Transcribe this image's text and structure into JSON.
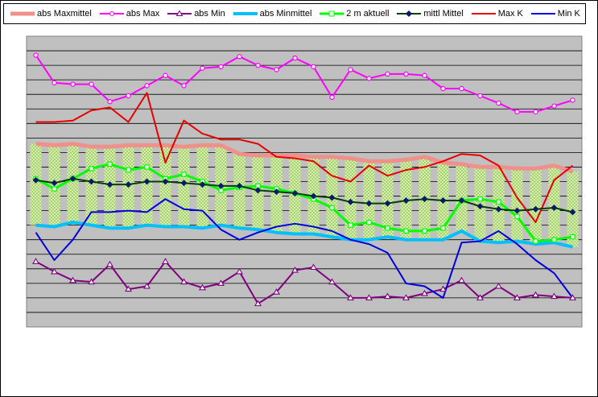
{
  "chart_data": {
    "type": "line",
    "title": "",
    "xlabel": "",
    "ylabel": "",
    "grid": true,
    "legend_position": "top",
    "x": [
      1,
      2,
      3,
      4,
      5,
      6,
      7,
      8,
      9,
      10,
      11,
      12,
      13,
      14,
      15,
      16,
      17,
      18,
      19,
      20,
      21,
      22,
      23,
      24,
      25,
      26,
      27,
      28,
      29,
      30
    ],
    "ylim": [
      0,
      20
    ],
    "band": {
      "upper": "abs Maxmittel",
      "lower": "abs Minmittel",
      "color": "#a6d46a"
    },
    "series": [
      {
        "name": "abs Maxmittel",
        "color": "#f0908a",
        "marker": "none",
        "width": 5,
        "values": [
          12.6,
          12.5,
          12.6,
          12.4,
          12.4,
          12.5,
          12.5,
          12.5,
          12.4,
          12.5,
          12.5,
          11.9,
          11.8,
          11.8,
          11.8,
          11.7,
          11.7,
          11.6,
          11.4,
          11.4,
          11.5,
          11.7,
          11.3,
          11.2,
          11.0,
          11.0,
          10.9,
          10.9,
          11.1,
          10.7
        ]
      },
      {
        "name": "abs Max",
        "color": "#ff00ff",
        "marker": "circle",
        "values": [
          18.7,
          16.8,
          16.7,
          16.7,
          15.5,
          15.9,
          16.6,
          17.3,
          16.6,
          17.8,
          17.9,
          18.6,
          18.0,
          17.7,
          18.5,
          17.9,
          15.8,
          17.7,
          17.1,
          17.4,
          17.4,
          17.3,
          16.4,
          16.4,
          15.9,
          15.4,
          14.8,
          14.8,
          15.2,
          15.6
        ]
      },
      {
        "name": "abs Min",
        "color": "#800080",
        "marker": "triangle",
        "values": [
          4.5,
          3.8,
          3.2,
          3.1,
          4.3,
          2.6,
          2.8,
          4.5,
          3.1,
          2.7,
          3.0,
          3.8,
          1.6,
          2.4,
          3.9,
          4.1,
          3.1,
          2.0,
          2.0,
          2.1,
          2.0,
          2.3,
          2.6,
          3.2,
          2.0,
          2.8,
          2.0,
          2.2,
          2.1,
          2.0
        ]
      },
      {
        "name": "abs Minmittel",
        "color": "#00c0ff",
        "marker": "none",
        "width": 4,
        "values": [
          7.0,
          6.9,
          7.2,
          7.0,
          6.8,
          6.8,
          7.0,
          6.9,
          6.9,
          6.8,
          7.0,
          6.8,
          6.7,
          6.5,
          6.4,
          6.4,
          6.2,
          6.0,
          6.0,
          6.2,
          6.0,
          6.0,
          6.0,
          6.6,
          5.9,
          5.8,
          5.9,
          5.7,
          5.8,
          5.5
        ]
      },
      {
        "name": "2 m aktuell",
        "color": "#00ff00",
        "marker": "square",
        "width": 3,
        "values": [
          10.2,
          9.5,
          10.2,
          10.9,
          11.2,
          10.8,
          11.0,
          10.2,
          10.5,
          10.0,
          9.4,
          9.6,
          9.7,
          9.5,
          9.2,
          8.8,
          8.2,
          7.0,
          7.2,
          6.8,
          6.6,
          6.6,
          6.8,
          8.7,
          8.8,
          8.6,
          7.6,
          5.9,
          6.0,
          6.2
        ]
      },
      {
        "name": "mittl Mittel",
        "color": "#004000",
        "marker": "diamond",
        "markerFill": "#0a1a6a",
        "values": [
          10.1,
          9.9,
          10.2,
          10.0,
          9.8,
          9.8,
          10.0,
          10.0,
          9.9,
          9.8,
          9.7,
          9.7,
          9.4,
          9.3,
          9.2,
          9.0,
          8.9,
          8.6,
          8.5,
          8.5,
          8.7,
          8.8,
          8.7,
          8.7,
          8.3,
          8.1,
          8.0,
          8.1,
          8.2,
          7.9
        ]
      },
      {
        "name": "Max K",
        "color": "#e80000",
        "marker": "none",
        "values": [
          14.1,
          14.1,
          14.2,
          14.9,
          15.1,
          14.1,
          16.1,
          11.3,
          14.2,
          13.3,
          12.9,
          12.9,
          12.6,
          11.7,
          11.6,
          11.4,
          10.4,
          10.0,
          11.1,
          10.4,
          10.8,
          11.0,
          11.4,
          11.9,
          11.8,
          11.1,
          8.9,
          7.2,
          10.1,
          11.1
        ]
      },
      {
        "name": "Min K",
        "color": "#0000e0",
        "marker": "none",
        "values": [
          6.5,
          4.6,
          6.0,
          7.9,
          7.9,
          8.0,
          7.9,
          8.8,
          8.1,
          8.0,
          6.7,
          6.0,
          6.5,
          6.9,
          7.1,
          6.9,
          6.6,
          6.0,
          5.7,
          5.1,
          3.0,
          2.8,
          2.0,
          5.8,
          5.9,
          6.6,
          5.7,
          4.6,
          3.7,
          2.0
        ]
      }
    ]
  }
}
